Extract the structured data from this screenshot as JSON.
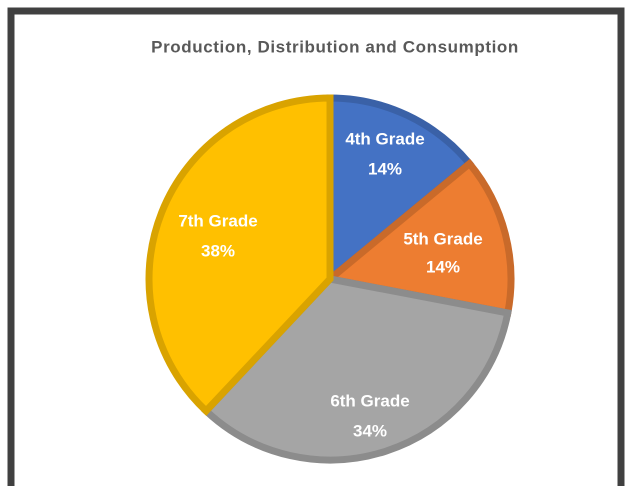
{
  "chart_data": {
    "type": "pie",
    "title": "Production, Distribution and Consumption",
    "categories": [
      "4th Grade",
      "5th Grade",
      "6th Grade",
      "7th Grade"
    ],
    "values": [
      14,
      14,
      34,
      38
    ],
    "value_labels": [
      "14%",
      "14%",
      "34%",
      "38%"
    ],
    "colors": [
      "#4472c4",
      "#ed7d31",
      "#a5a5a5",
      "#ffc000"
    ]
  }
}
